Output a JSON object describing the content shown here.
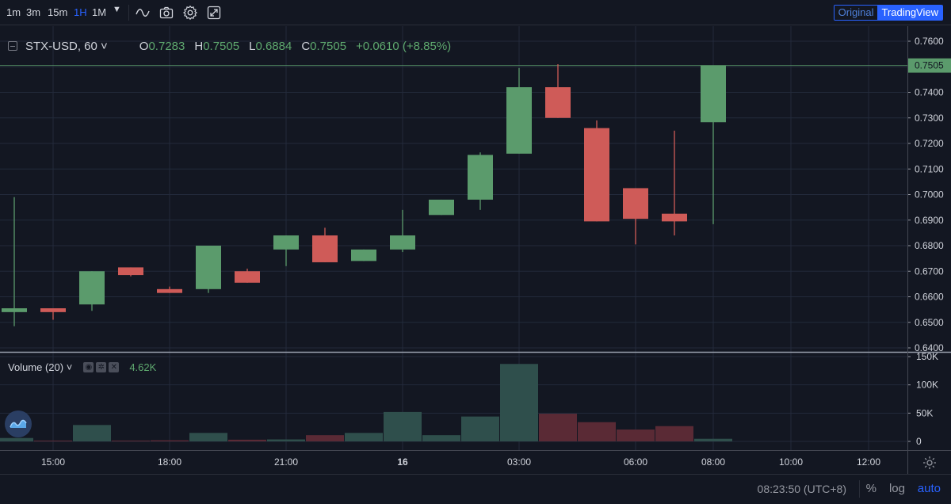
{
  "toolbar": {
    "intervals": [
      "1m",
      "3m",
      "15m",
      "1H",
      "1M"
    ],
    "active_interval": "1H",
    "icons": [
      "chevron-down-icon",
      "indicators-icon",
      "camera-icon",
      "gear-icon",
      "fullscreen-icon"
    ],
    "view_original": "Original",
    "view_tradingview": "TradingView",
    "active_view": "TradingView"
  },
  "legend": {
    "symbol": "STX-USD, 60",
    "open_label": "O",
    "open": "0.7283",
    "high_label": "H",
    "high": "0.7505",
    "low_label": "L",
    "low": "0.6884",
    "close_label": "C",
    "close": "0.7505",
    "change": "+0.0610 (+8.85%)"
  },
  "volume_legend": {
    "name": "Volume (20)",
    "value": "4.62K"
  },
  "chart_data": {
    "type": "candlestick",
    "symbol": "STX-USD",
    "interval": "60",
    "x_labels": [
      {
        "label": "15:00",
        "index": 1
      },
      {
        "label": "18:00",
        "index": 4
      },
      {
        "label": "21:00",
        "index": 7
      },
      {
        "label": "16",
        "index": 10,
        "bold": true
      },
      {
        "label": "03:00",
        "index": 13
      },
      {
        "label": "06:00",
        "index": 16
      },
      {
        "label": "08:00",
        "index": 18
      },
      {
        "label": "10:00",
        "index": 20
      },
      {
        "label": "12:00",
        "index": 22
      }
    ],
    "price_ticks": [
      "0.7600",
      "0.7500",
      "0.7400",
      "0.7300",
      "0.7200",
      "0.7100",
      "0.7000",
      "0.6900",
      "0.6800",
      "0.6700",
      "0.6600",
      "0.6500",
      "0.6400"
    ],
    "last_price_label": "0.7505",
    "price_range": [
      0.6395,
      0.7625
    ],
    "volume_ticks": [
      "150K",
      "100K",
      "50K",
      "0"
    ],
    "volume_range": [
      0,
      150000
    ],
    "candles": [
      {
        "o": 0.654,
        "h": 0.699,
        "l": 0.6485,
        "c": 0.6555,
        "v": 6000
      },
      {
        "o": 0.6555,
        "h": 0.6555,
        "l": 0.651,
        "c": 0.654,
        "v": 1500
      },
      {
        "o": 0.657,
        "h": 0.67,
        "l": 0.6545,
        "c": 0.67,
        "v": 29000
      },
      {
        "o": 0.6715,
        "h": 0.6715,
        "l": 0.668,
        "c": 0.6685,
        "v": 1500
      },
      {
        "o": 0.663,
        "h": 0.664,
        "l": 0.6615,
        "c": 0.6615,
        "v": 2000
      },
      {
        "o": 0.663,
        "h": 0.68,
        "l": 0.6615,
        "c": 0.68,
        "v": 15000
      },
      {
        "o": 0.67,
        "h": 0.671,
        "l": 0.6655,
        "c": 0.6655,
        "v": 3000
      },
      {
        "o": 0.6785,
        "h": 0.684,
        "l": 0.672,
        "c": 0.684,
        "v": 3500
      },
      {
        "o": 0.684,
        "h": 0.687,
        "l": 0.6735,
        "c": 0.6735,
        "v": 11000
      },
      {
        "o": 0.674,
        "h": 0.6785,
        "l": 0.674,
        "c": 0.6785,
        "v": 15000
      },
      {
        "o": 0.6785,
        "h": 0.694,
        "l": 0.6775,
        "c": 0.684,
        "v": 52000
      },
      {
        "o": 0.692,
        "h": 0.698,
        "l": 0.692,
        "c": 0.698,
        "v": 11000
      },
      {
        "o": 0.698,
        "h": 0.7165,
        "l": 0.694,
        "c": 0.7155,
        "v": 44000
      },
      {
        "o": 0.716,
        "h": 0.7495,
        "l": 0.716,
        "c": 0.742,
        "v": 137000
      },
      {
        "o": 0.742,
        "h": 0.751,
        "l": 0.73,
        "c": 0.73,
        "v": 49000
      },
      {
        "o": 0.726,
        "h": 0.729,
        "l": 0.6895,
        "c": 0.6895,
        "v": 34000
      },
      {
        "o": 0.7025,
        "h": 0.7025,
        "l": 0.6805,
        "c": 0.6905,
        "v": 21000
      },
      {
        "o": 0.6925,
        "h": 0.725,
        "l": 0.684,
        "c": 0.6895,
        "v": 27000
      },
      {
        "o": 0.7283,
        "h": 0.7505,
        "l": 0.6884,
        "c": 0.7505,
        "v": 4620
      }
    ],
    "colors": {
      "up": "#5b9b6c",
      "down": "#cf5b58",
      "up_volume": "#2f4f4c",
      "down_volume": "#5a2a35",
      "background": "#131722",
      "grid": "#232a3b"
    }
  },
  "status": {
    "time": "08:23:50 (UTC+8)",
    "percent": "%",
    "log": "log",
    "auto": "auto"
  }
}
